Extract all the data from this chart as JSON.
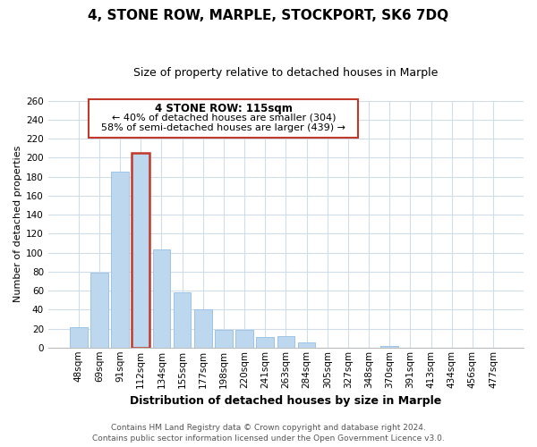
{
  "title": "4, STONE ROW, MARPLE, STOCKPORT, SK6 7DQ",
  "subtitle": "Size of property relative to detached houses in Marple",
  "xlabel": "Distribution of detached houses by size in Marple",
  "ylabel": "Number of detached properties",
  "categories": [
    "48sqm",
    "69sqm",
    "91sqm",
    "112sqm",
    "134sqm",
    "155sqm",
    "177sqm",
    "198sqm",
    "220sqm",
    "241sqm",
    "263sqm",
    "284sqm",
    "305sqm",
    "327sqm",
    "348sqm",
    "370sqm",
    "391sqm",
    "413sqm",
    "434sqm",
    "456sqm",
    "477sqm"
  ],
  "values": [
    21,
    79,
    185,
    205,
    103,
    58,
    40,
    19,
    19,
    11,
    12,
    5,
    0,
    0,
    0,
    2,
    0,
    0,
    0,
    0,
    0
  ],
  "bar_color": "#bdd7ee",
  "bar_edge_color": "#9dc3e6",
  "highlight_index": 3,
  "highlight_edge_color": "#c0392b",
  "highlight_edge_width": 1.8,
  "ylim": [
    0,
    260
  ],
  "yticks": [
    0,
    20,
    40,
    60,
    80,
    100,
    120,
    140,
    160,
    180,
    200,
    220,
    240,
    260
  ],
  "annotation_title": "4 STONE ROW: 115sqm",
  "annotation_line1": "← 40% of detached houses are smaller (304)",
  "annotation_line2": "58% of semi-detached houses are larger (439) →",
  "annotation_box_edge_color": "#c0392b",
  "footer_line1": "Contains HM Land Registry data © Crown copyright and database right 2024.",
  "footer_line2": "Contains public sector information licensed under the Open Government Licence v3.0.",
  "background_color": "#ffffff",
  "grid_color": "#d0dce8",
  "title_fontsize": 11,
  "subtitle_fontsize": 9,
  "ylabel_fontsize": 8,
  "xlabel_fontsize": 9,
  "tick_fontsize": 7.5,
  "annot_title_fontsize": 8.5,
  "annot_text_fontsize": 8,
  "footer_fontsize": 6.5
}
